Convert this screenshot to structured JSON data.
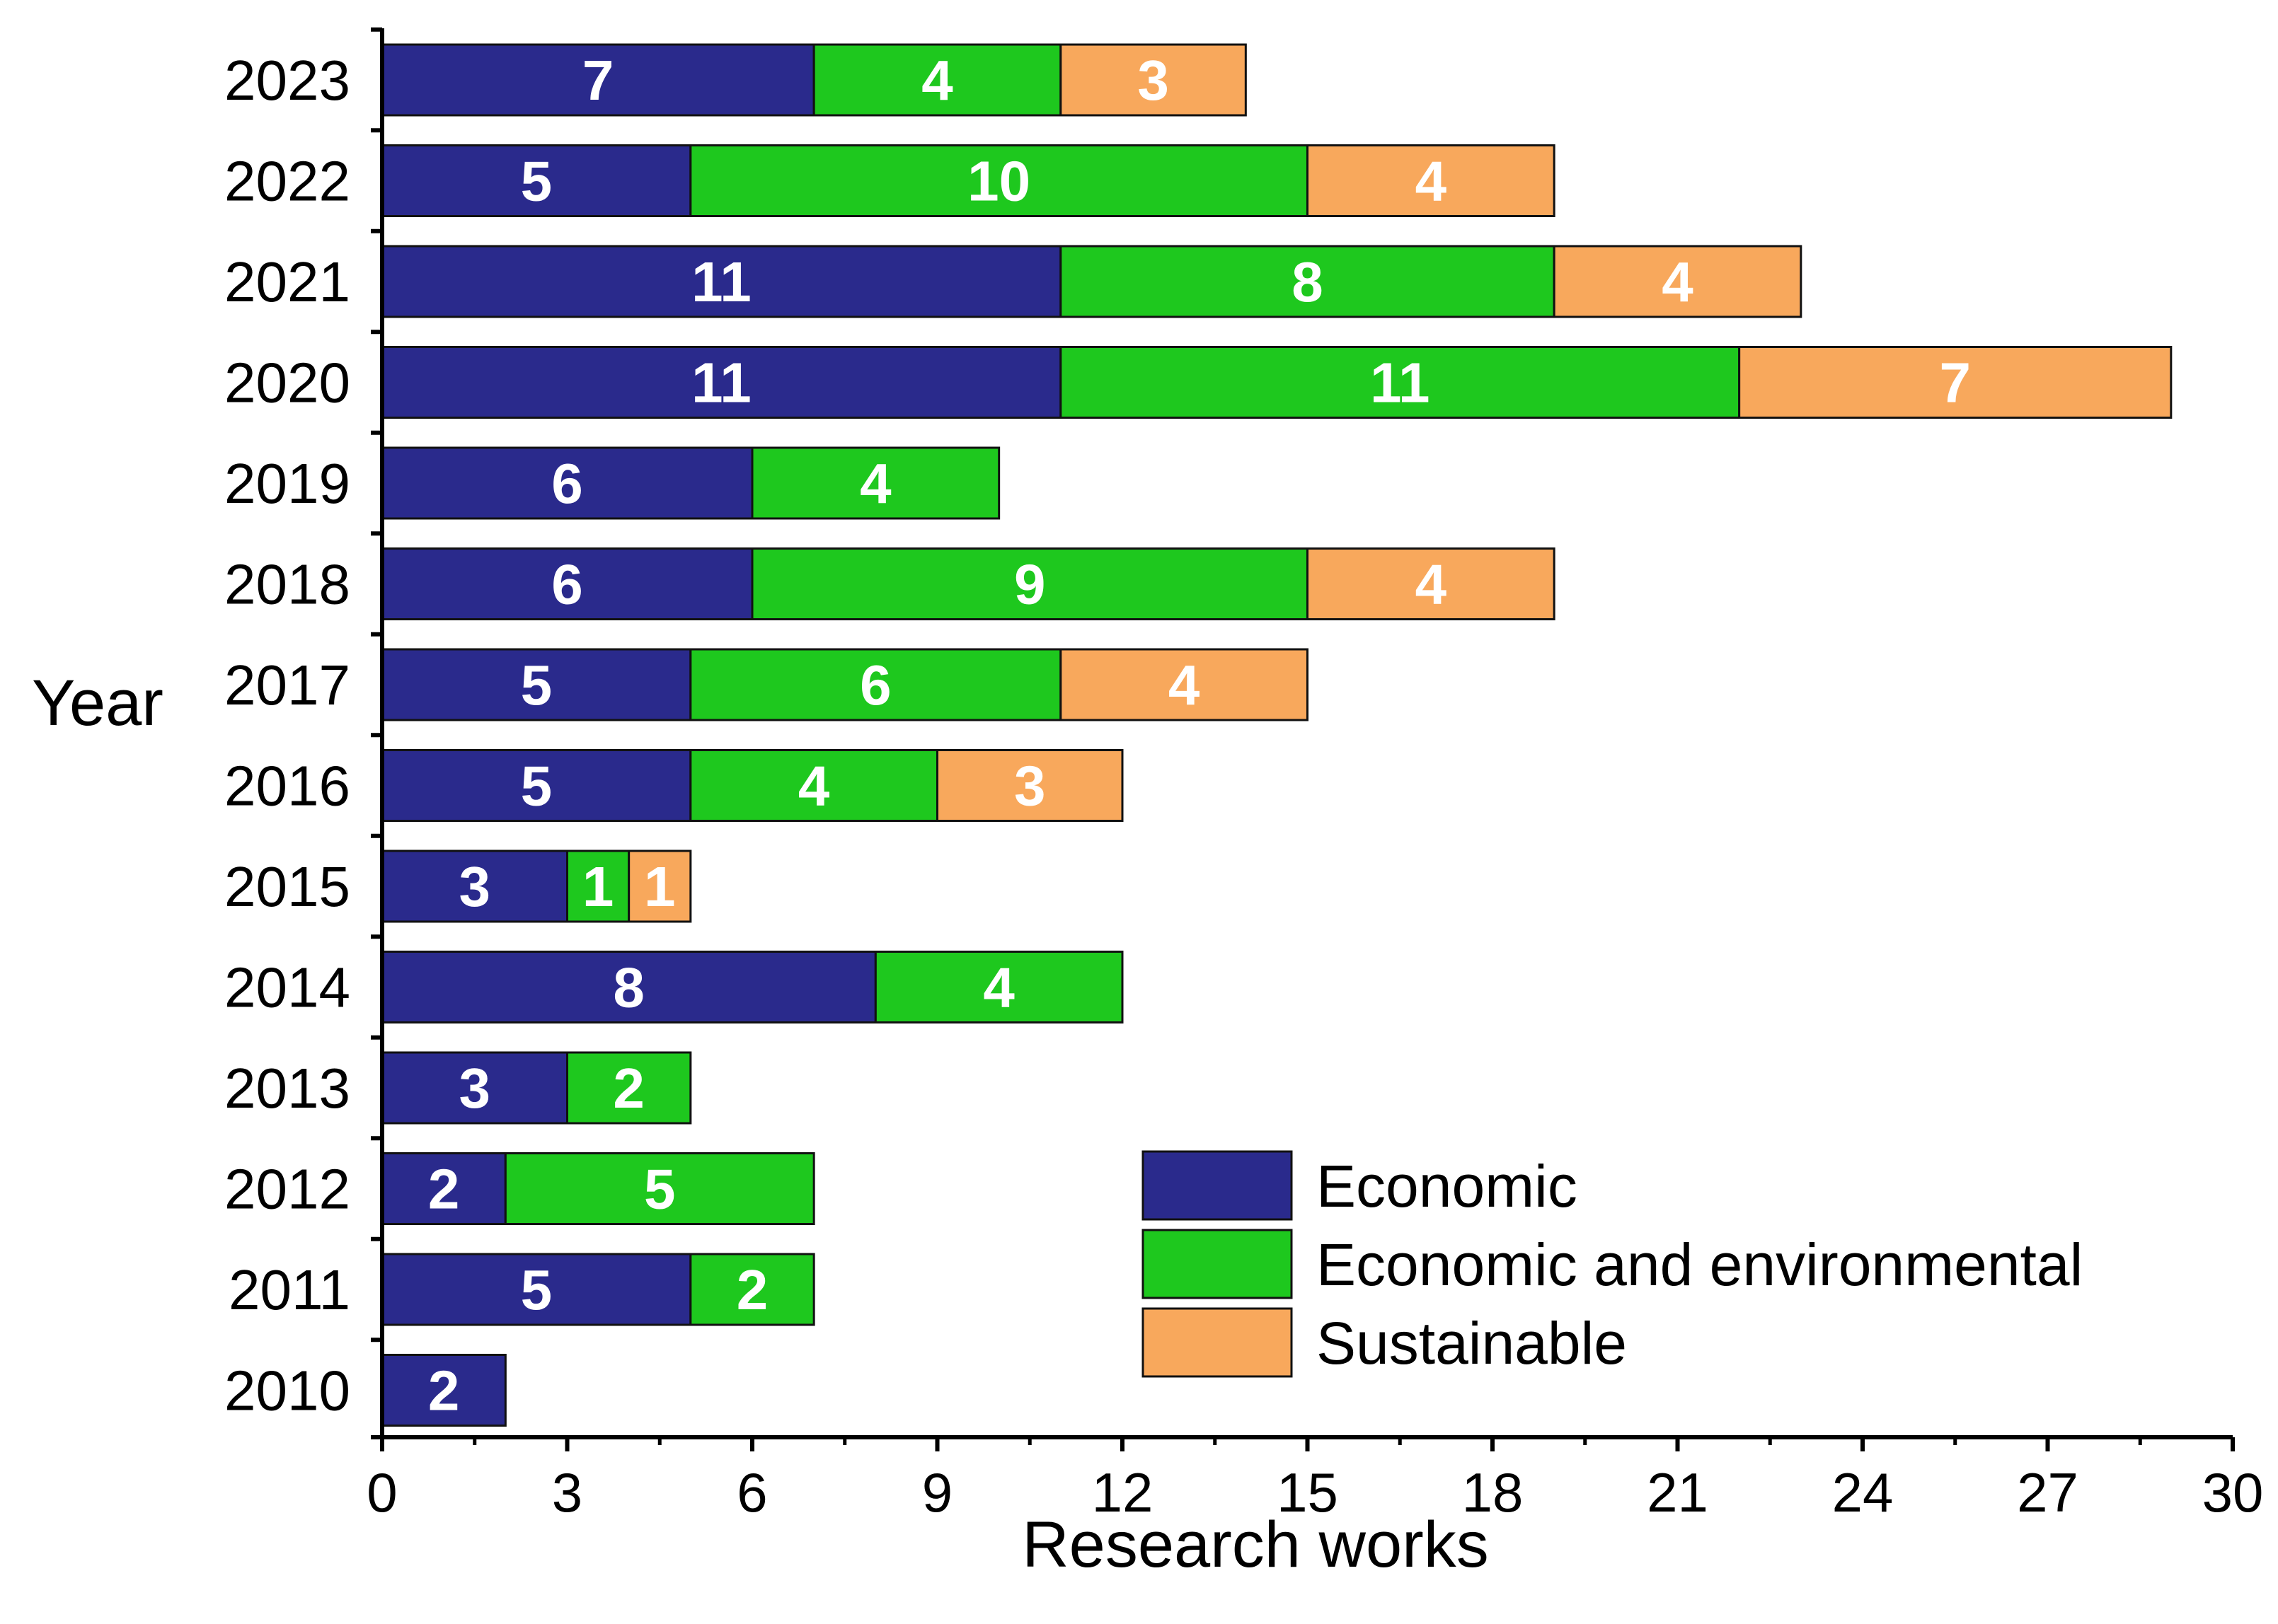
{
  "chart_data": {
    "type": "bar",
    "orientation": "horizontal",
    "stacked": true,
    "categories": [
      "2010",
      "2011",
      "2012",
      "2013",
      "2014",
      "2015",
      "2016",
      "2017",
      "2018",
      "2019",
      "2020",
      "2021",
      "2022",
      "2023"
    ],
    "series": [
      {
        "name": "Economic",
        "color": "#2a2a8c",
        "values": [
          2,
          5,
          2,
          3,
          8,
          3,
          5,
          5,
          6,
          6,
          11,
          11,
          5,
          7
        ]
      },
      {
        "name": "Economic and environmental",
        "color": "#1ec81e",
        "values": [
          0,
          2,
          5,
          2,
          4,
          1,
          4,
          6,
          9,
          4,
          11,
          8,
          10,
          4
        ]
      },
      {
        "name": "Sustainable",
        "color": "#f8a85c",
        "values": [
          0,
          0,
          0,
          0,
          0,
          1,
          3,
          4,
          4,
          0,
          7,
          4,
          4,
          3
        ]
      }
    ],
    "title": "",
    "xlabel": "Research works",
    "ylabel": "Year",
    "xlim": [
      0,
      30
    ],
    "xticks": [
      "0",
      "3",
      "6",
      "9",
      "12",
      "15",
      "18",
      "21",
      "24",
      "27",
      "30"
    ],
    "grid": false,
    "legend": "bottom-right"
  }
}
